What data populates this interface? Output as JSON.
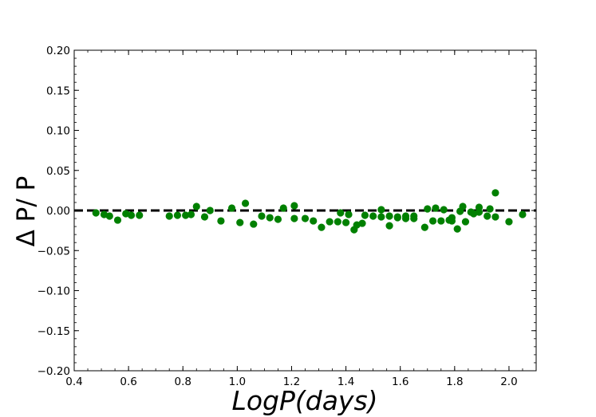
{
  "chart_data": {
    "type": "scatter",
    "xlabel": "LogP(days)",
    "ylabel": "Δ P/ P",
    "xlim": [
      0.4,
      2.1
    ],
    "ylim": [
      -0.2,
      0.2
    ],
    "xticks": [
      0.4,
      0.6,
      0.8,
      1.0,
      1.2,
      1.4,
      1.6,
      1.8,
      2.0
    ],
    "xtick_labels": [
      "0.4",
      "0.6",
      "0.8",
      "1.0",
      "1.2",
      "1.4",
      "1.6",
      "1.8",
      "2.0"
    ],
    "yticks": [
      0.2,
      0.15,
      0.1,
      0.05,
      0.0,
      -0.05,
      -0.1,
      -0.15,
      -0.2
    ],
    "ytick_labels": [
      "0.20",
      "0.15",
      "0.10",
      "0.05",
      "0.00",
      "−0.05",
      "−0.10",
      "−0.15",
      "−0.20"
    ],
    "grid": false,
    "marker_color": "#008000",
    "reference_line": {
      "y": 0.0,
      "style": "dashed",
      "color": "#000000"
    },
    "points": [
      {
        "x": 0.48,
        "y": -0.003
      },
      {
        "x": 0.51,
        "y": -0.005
      },
      {
        "x": 0.53,
        "y": -0.007
      },
      {
        "x": 0.56,
        "y": -0.012
      },
      {
        "x": 0.59,
        "y": -0.004
      },
      {
        "x": 0.61,
        "y": -0.006
      },
      {
        "x": 0.64,
        "y": -0.006
      },
      {
        "x": 0.75,
        "y": -0.007
      },
      {
        "x": 0.78,
        "y": -0.006
      },
      {
        "x": 0.81,
        "y": -0.006
      },
      {
        "x": 0.83,
        "y": -0.005
      },
      {
        "x": 0.85,
        "y": 0.005
      },
      {
        "x": 0.88,
        "y": -0.008
      },
      {
        "x": 0.9,
        "y": 0.0
      },
      {
        "x": 0.94,
        "y": -0.013
      },
      {
        "x": 0.98,
        "y": 0.003
      },
      {
        "x": 1.01,
        "y": -0.015
      },
      {
        "x": 1.03,
        "y": 0.009
      },
      {
        "x": 1.06,
        "y": -0.017
      },
      {
        "x": 1.09,
        "y": -0.007
      },
      {
        "x": 1.12,
        "y": -0.009
      },
      {
        "x": 1.15,
        "y": -0.011
      },
      {
        "x": 1.17,
        "y": 0.003
      },
      {
        "x": 1.21,
        "y": 0.006
      },
      {
        "x": 1.21,
        "y": -0.01
      },
      {
        "x": 1.25,
        "y": -0.01
      },
      {
        "x": 1.28,
        "y": -0.013
      },
      {
        "x": 1.31,
        "y": -0.021
      },
      {
        "x": 1.34,
        "y": -0.014
      },
      {
        "x": 1.37,
        "y": -0.014
      },
      {
        "x": 1.38,
        "y": -0.003
      },
      {
        "x": 1.4,
        "y": -0.015
      },
      {
        "x": 1.41,
        "y": -0.005
      },
      {
        "x": 1.43,
        "y": -0.024
      },
      {
        "x": 1.44,
        "y": -0.018
      },
      {
        "x": 1.46,
        "y": -0.016
      },
      {
        "x": 1.47,
        "y": -0.006
      },
      {
        "x": 1.5,
        "y": -0.007
      },
      {
        "x": 1.53,
        "y": 0.001
      },
      {
        "x": 1.53,
        "y": -0.008
      },
      {
        "x": 1.56,
        "y": -0.007
      },
      {
        "x": 1.56,
        "y": -0.019
      },
      {
        "x": 1.59,
        "y": -0.009
      },
      {
        "x": 1.59,
        "y": -0.008
      },
      {
        "x": 1.62,
        "y": -0.007
      },
      {
        "x": 1.62,
        "y": -0.01
      },
      {
        "x": 1.65,
        "y": -0.007
      },
      {
        "x": 1.65,
        "y": -0.01
      },
      {
        "x": 1.69,
        "y": -0.021
      },
      {
        "x": 1.7,
        "y": 0.002
      },
      {
        "x": 1.72,
        "y": -0.013
      },
      {
        "x": 1.73,
        "y": 0.003
      },
      {
        "x": 1.75,
        "y": -0.013
      },
      {
        "x": 1.76,
        "y": 0.001
      },
      {
        "x": 1.78,
        "y": -0.012
      },
      {
        "x": 1.79,
        "y": -0.013
      },
      {
        "x": 1.79,
        "y": -0.009
      },
      {
        "x": 1.81,
        "y": -0.023
      },
      {
        "x": 1.82,
        "y": -0.001
      },
      {
        "x": 1.83,
        "y": 0.005
      },
      {
        "x": 1.84,
        "y": -0.014
      },
      {
        "x": 1.86,
        "y": -0.002
      },
      {
        "x": 1.87,
        "y": -0.004
      },
      {
        "x": 1.89,
        "y": -0.002
      },
      {
        "x": 1.89,
        "y": 0.004
      },
      {
        "x": 1.92,
        "y": -0.007
      },
      {
        "x": 1.93,
        "y": 0.002
      },
      {
        "x": 1.95,
        "y": 0.022
      },
      {
        "x": 1.95,
        "y": -0.008
      },
      {
        "x": 2.0,
        "y": -0.014
      },
      {
        "x": 2.05,
        "y": -0.005
      }
    ]
  }
}
